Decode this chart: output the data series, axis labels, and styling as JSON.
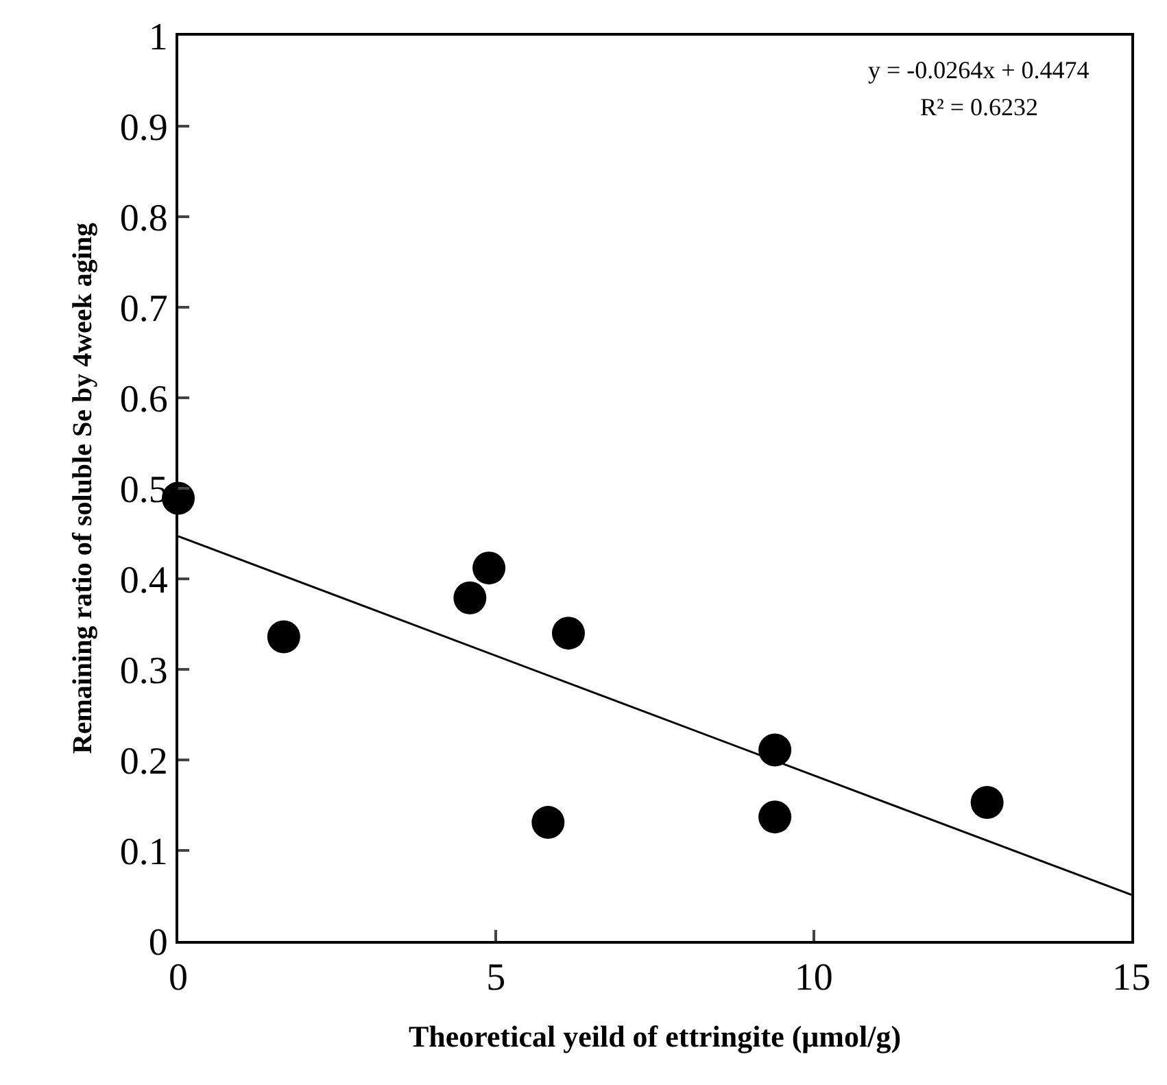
{
  "chart_data": {
    "type": "scatter",
    "xlabel": "Theoretical yeild of ettringite (μmol/g)",
    "ylabel": "Remaining ratio of soluble Se by 4week aging",
    "x": [
      0,
      1.66,
      4.59,
      4.89,
      6.14,
      5.82,
      9.39,
      9.39,
      12.73
    ],
    "series": [
      {
        "color": "#000000",
        "marker": "circle",
        "values": [
          0.489,
          0.336,
          0.379,
          0.412,
          0.34,
          0.131,
          0.211,
          0.137,
          0.153
        ]
      },
      {
        "type": "line",
        "color": "#000000",
        "marker": "none",
        "line_style": "solid",
        "x": [
          0,
          15
        ],
        "values": [
          0.447,
          0.051
        ]
      }
    ],
    "annotations": [
      "y = -0.0264x + 0.4474",
      "R² = 0.6232"
    ],
    "xlim": [
      0,
      15
    ],
    "xticks": [
      0,
      5,
      10,
      15
    ],
    "ylim": [
      0,
      1
    ],
    "yticks": [
      0,
      0.1,
      0.2,
      0.3,
      0.4,
      0.5,
      0.6,
      0.7,
      0.8,
      0.9,
      1
    ],
    "legend": false
  }
}
